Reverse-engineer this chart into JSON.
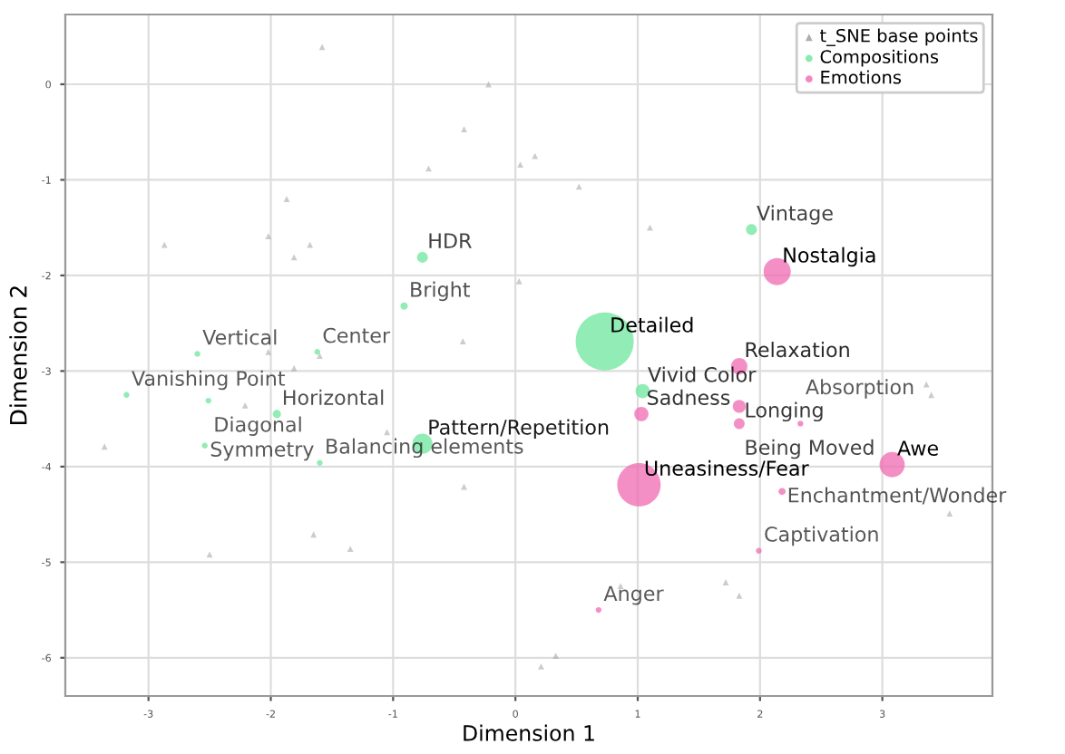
{
  "chart_data": {
    "type": "bubble",
    "xlabel": "Dimension 1",
    "ylabel": "Dimension 2",
    "xlim": [
      -3.68,
      3.9
    ],
    "ylim": [
      -6.4,
      0.73
    ],
    "xticks": [
      -3,
      -2,
      -1,
      0,
      1,
      2,
      3
    ],
    "yticks": [
      -6,
      -5,
      -4,
      -3,
      -2,
      -1,
      0
    ],
    "grid": true,
    "legend": "top right",
    "series": [
      {
        "name": "t_SNE base points",
        "type": "scatter",
        "marker": "triangle",
        "color": "#9a9a9a",
        "x": [
          -1.58,
          -0.22,
          -0.42,
          0.16,
          0.04,
          -0.71,
          -1.87,
          -2.87,
          -2.02,
          -1.68,
          -1.81,
          0.03,
          -0.43,
          -2.02,
          -1.6,
          -1.81,
          0.52,
          1.1,
          -2.21,
          -3.36,
          -1.05,
          -0.42,
          -1.65,
          -1.35,
          -2.5,
          0.21,
          3.36,
          3.4,
          3.55,
          1.72,
          1.83,
          0.86,
          0.33
        ],
        "values": [
          0.39,
          0.0,
          -0.47,
          -0.75,
          -0.84,
          -0.88,
          -1.2,
          -1.68,
          -1.59,
          -1.68,
          -1.81,
          -2.06,
          -2.69,
          -2.8,
          -2.84,
          -2.97,
          -1.07,
          -1.5,
          -3.36,
          -3.79,
          -3.64,
          -4.21,
          -4.71,
          -4.86,
          -4.92,
          -6.09,
          -3.14,
          -3.25,
          -4.49,
          -5.21,
          -5.35,
          -5.25,
          -5.98
        ]
      },
      {
        "name": "Compositions",
        "marker": "circle",
        "color": "#6ee59c",
        "x": [
          -0.76,
          -0.91,
          0.73,
          1.04,
          -0.76,
          -1.95,
          1.93,
          -2.6,
          -1.62,
          -3.18,
          -2.51,
          -2.54,
          -1.6
        ],
        "values": [
          -1.81,
          -2.32,
          -2.69,
          -3.21,
          -3.76,
          -3.45,
          -1.52,
          -2.82,
          -2.8,
          -3.25,
          -3.31,
          -3.78,
          -3.96
        ],
        "sizes": [
          0.035,
          0.016,
          1,
          0.06,
          0.12,
          0.02,
          0.035,
          0.01,
          0.01,
          0.01,
          0.01,
          0.01,
          0.01
        ]
      },
      {
        "name": "Emotions",
        "marker": "circle",
        "color": "#f06ab2",
        "x": [
          2.14,
          1.83,
          1.03,
          1.83,
          1.83,
          2.33,
          1.01,
          3.08,
          2.18,
          1.99,
          0.68
        ],
        "values": [
          -1.96,
          -2.95,
          -3.45,
          -3.37,
          -3.55,
          -3.55,
          -4.19,
          -3.98,
          -4.26,
          -4.88,
          -5.5
        ],
        "sizes": [
          0.22,
          0.08,
          0.06,
          0.05,
          0.035,
          0.01,
          0.56,
          0.19,
          0.015,
          0.01,
          0.01
        ]
      }
    ],
    "annotations": [
      {
        "text": "HDR",
        "x": -0.76,
        "y": -1.81
      },
      {
        "text": "Bright",
        "x": -0.91,
        "y": -2.32
      },
      {
        "text": "Detailed",
        "x": 0.73,
        "y": -2.69
      },
      {
        "text": "Vivid Color",
        "x": 1.04,
        "y": -3.21
      },
      {
        "text": "Pattern/Repetition",
        "x": -0.76,
        "y": -3.76
      },
      {
        "text": "Horizontal",
        "x": -1.95,
        "y": -3.45
      },
      {
        "text": "Vintage",
        "x": 1.93,
        "y": -1.52
      },
      {
        "text": "Vertical",
        "x": -2.6,
        "y": -2.82
      },
      {
        "text": "Center",
        "x": -1.62,
        "y": -2.8
      },
      {
        "text": "Vanishing Point",
        "x": -3.18,
        "y": -3.25
      },
      {
        "text": "Diagonal",
        "x": -2.51,
        "y": -3.31
      },
      {
        "text": "Symmetry",
        "x": -2.54,
        "y": -3.78
      },
      {
        "text": "Balancing elements",
        "x": -1.6,
        "y": -3.96
      },
      {
        "text": "Nostalgia",
        "x": 2.14,
        "y": -1.96
      },
      {
        "text": "Relaxation",
        "x": 1.83,
        "y": -2.95
      },
      {
        "text": "Sadness",
        "x": 1.03,
        "y": -3.45
      },
      {
        "text": "Longing",
        "x": 1.83,
        "y": -3.37
      },
      {
        "text": "Being Moved",
        "x": 1.83,
        "y": -3.55
      },
      {
        "text": "Absorption",
        "x": 2.33,
        "y": -3.55
      },
      {
        "text": "Uneasiness/Fear",
        "x": 1.01,
        "y": -4.19
      },
      {
        "text": "Awe",
        "x": 3.08,
        "y": -3.98
      },
      {
        "text": "Enchantment/Wonder",
        "x": 2.18,
        "y": -4.26
      },
      {
        "text": "Captivation",
        "x": 1.99,
        "y": -4.88
      },
      {
        "text": "Anger",
        "x": 0.68,
        "y": -5.5
      }
    ]
  }
}
